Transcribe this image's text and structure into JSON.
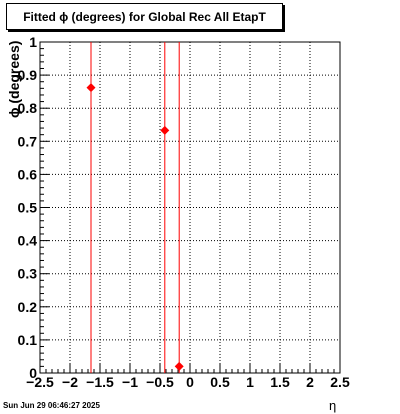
{
  "title": "Fitted ϕ (degrees) for Global Rec All EtapT",
  "timestamp": "Sun Jun 29 06:46:27 2025",
  "chart_data": {
    "type": "scatter",
    "title": "Fitted ϕ (degrees) for Global Rec All EtapT",
    "xlabel": "η",
    "ylabel": "ϕ (degrees)",
    "xlim": [
      -2.5,
      2.5
    ],
    "ylim": [
      0,
      1
    ],
    "x_ticks": [
      "−2.5",
      "−2",
      "−1.5",
      "−1",
      "−0.5",
      "0",
      "0.5",
      "1",
      "1.5",
      "2",
      "2.5"
    ],
    "y_ticks": [
      "0",
      "0.1",
      "0.2",
      "0.3",
      "0.4",
      "0.5",
      "0.6",
      "0.7",
      "0.8",
      "0.9",
      "1"
    ],
    "grid": true,
    "marker_color": "#ff0000",
    "points": [
      {
        "x": -1.65,
        "y": 0.862
      },
      {
        "x": -0.42,
        "y": 0.733
      },
      {
        "x": -0.18,
        "y": 0.02
      }
    ]
  }
}
